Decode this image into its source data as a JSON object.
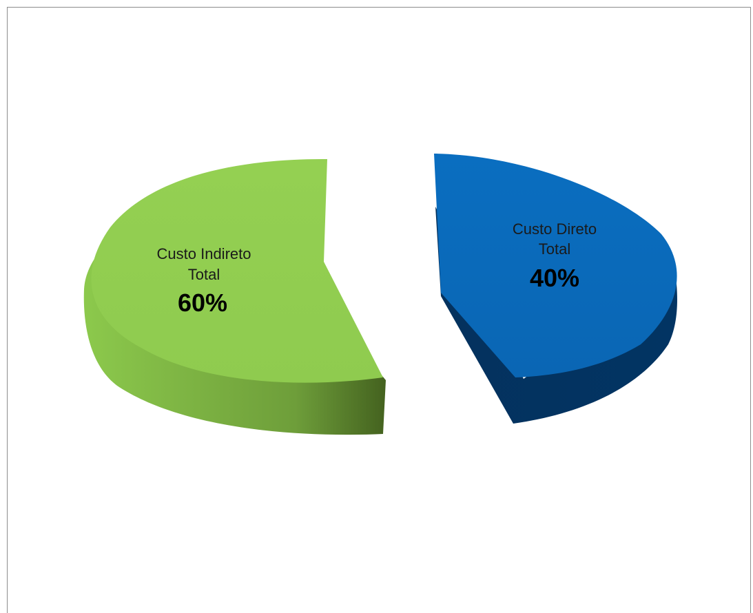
{
  "chart_data": {
    "type": "pie",
    "style": "3d-exploded",
    "slices": [
      {
        "label_lines": [
          "Custo Indireto",
          "Total"
        ],
        "value": 60,
        "value_label": "60%",
        "color": "#92d050",
        "side_color": "#5c8a2e"
      },
      {
        "label_lines": [
          "Custo Direto",
          "Total"
        ],
        "value": 40,
        "value_label": "40%",
        "color": "#0070c0",
        "side_color": "#003a6b"
      }
    ],
    "legend": "none"
  }
}
